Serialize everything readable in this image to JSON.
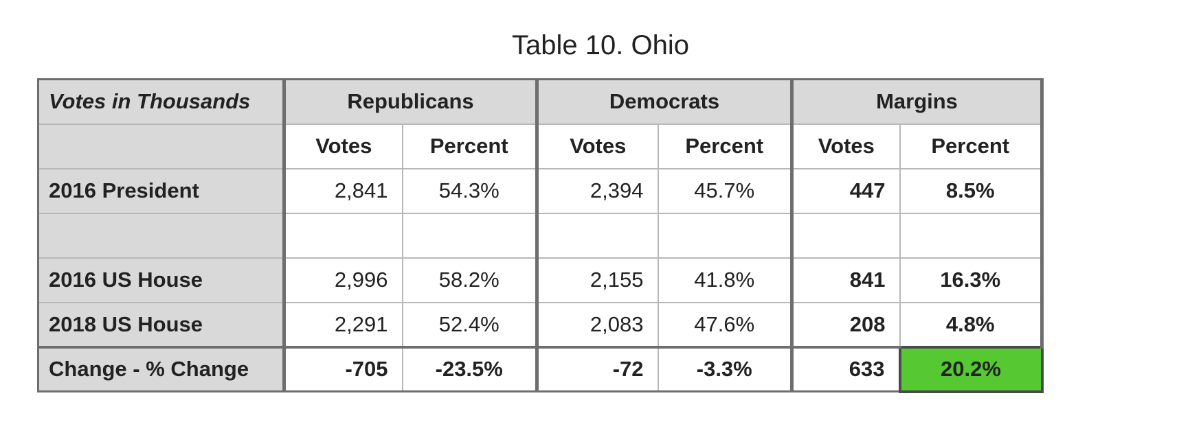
{
  "title": "Table 10. Ohio",
  "header": {
    "corner_label": "Votes in Thousands",
    "groups": [
      "Republicans",
      "Democrats",
      "Margins"
    ],
    "sub": [
      "Votes",
      "Percent",
      "Votes",
      "Percent",
      "Votes",
      "Percent"
    ]
  },
  "rows": [
    {
      "label": "2016 President",
      "cells": [
        "2,841",
        "54.3%",
        "2,394",
        "45.7%",
        "447",
        "8.5%"
      ]
    },
    {
      "label": "",
      "cells": [
        "",
        "",
        "",
        "",
        "",
        ""
      ]
    },
    {
      "label": "2016 US House",
      "cells": [
        "2,996",
        "58.2%",
        "2,155",
        "41.8%",
        "841",
        "16.3%"
      ]
    },
    {
      "label": "2018 US House",
      "cells": [
        "2,291",
        "52.4%",
        "2,083",
        "47.6%",
        "208",
        "4.8%"
      ]
    },
    {
      "label": "Change - % Change",
      "cells": [
        "-705",
        "-23.5%",
        "-72",
        "-3.3%",
        "633",
        "20.2%"
      ]
    }
  ],
  "colors": {
    "red": "#e0302b",
    "blue": "#2a8ad4",
    "highlight": "#55c832",
    "header_bg": "#d9d9d9"
  }
}
